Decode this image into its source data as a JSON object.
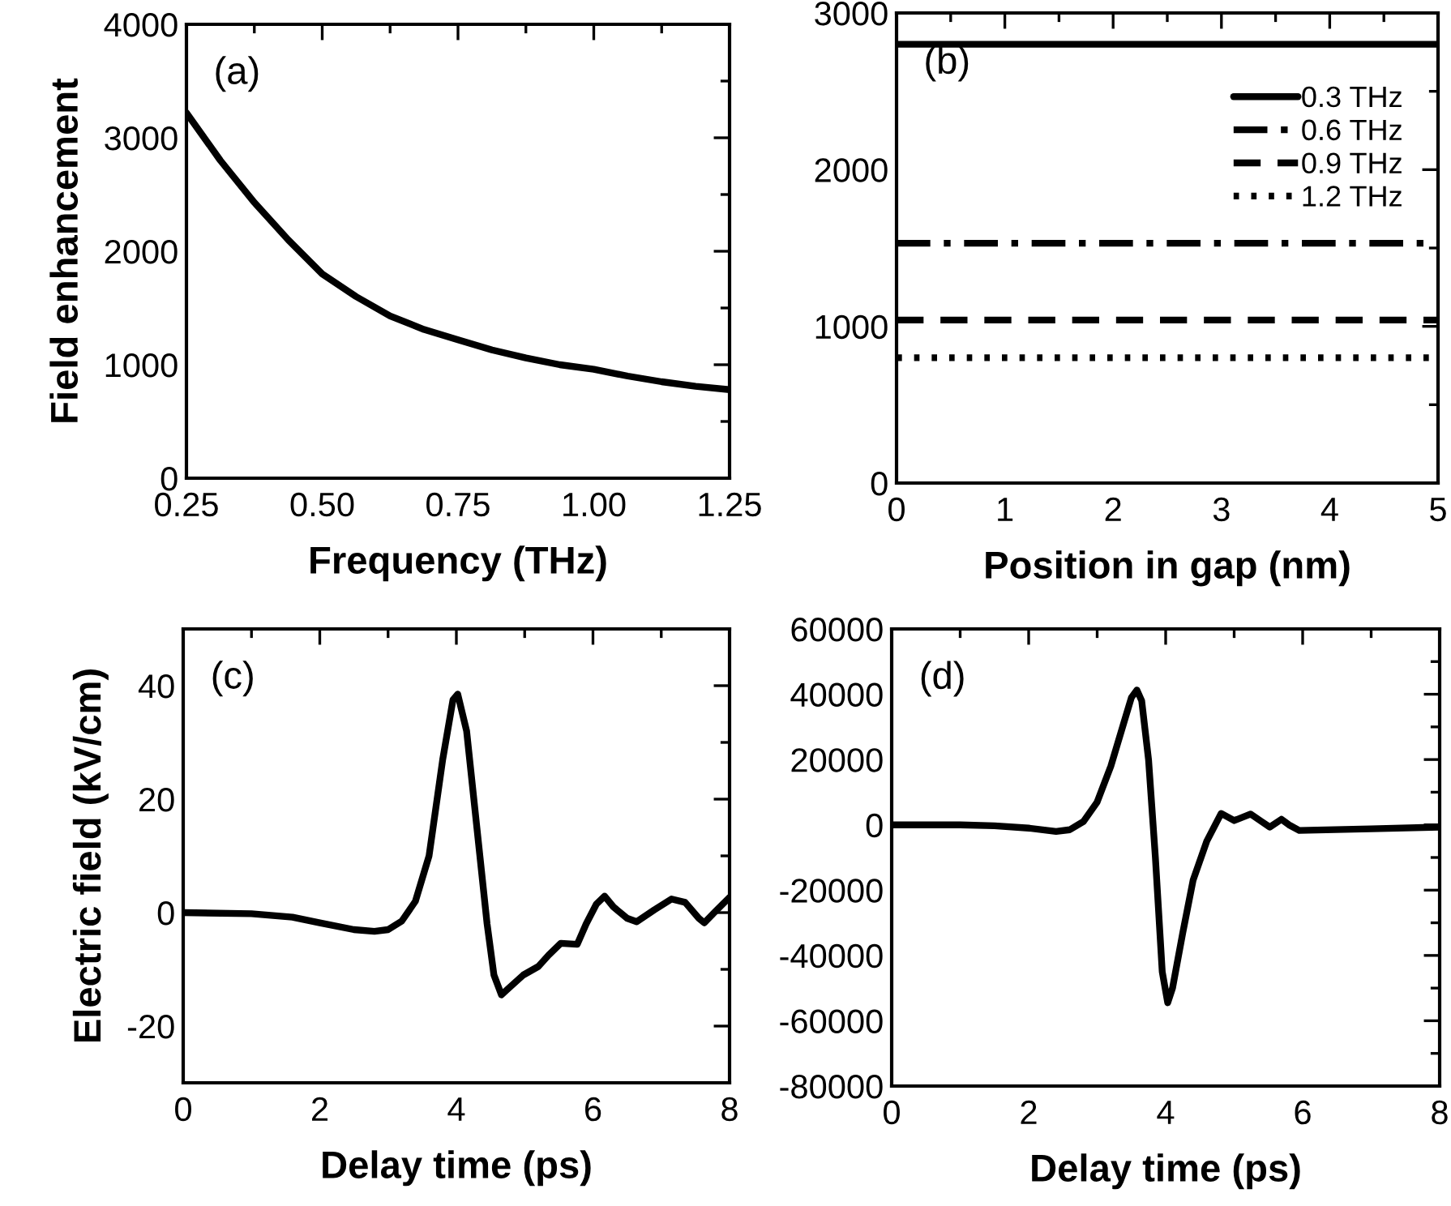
{
  "chart_data": [
    {
      "type": "line",
      "xlabel": "Frequency (THz)",
      "ylabel": "Field enhancement",
      "annotations": [
        "(a)"
      ],
      "xlim": [
        0.25,
        1.25
      ],
      "ylim": [
        0,
        4000
      ],
      "xticks": [
        {
          "value": 0.25,
          "label": "0.25"
        },
        {
          "value": 0.375,
          "label": null
        },
        {
          "value": 0.5,
          "label": "0.50"
        },
        {
          "value": 0.625,
          "label": null
        },
        {
          "value": 0.75,
          "label": "0.75"
        },
        {
          "value": 0.875,
          "label": null
        },
        {
          "value": 1.0,
          "label": "1.00"
        },
        {
          "value": 1.125,
          "label": null
        },
        {
          "value": 1.25,
          "label": "1.25"
        }
      ],
      "yticks": [
        0,
        {
          "value": 500,
          "label": null
        },
        1000,
        {
          "value": 1500,
          "label": null
        },
        2000,
        {
          "value": 2500,
          "label": null
        },
        3000,
        {
          "value": 3500,
          "label": null
        },
        4000
      ],
      "series": [
        {
          "color": "#000000",
          "line_style": "solid",
          "x": [
            0.25,
            0.3125,
            0.375,
            0.4375,
            0.5,
            0.5625,
            0.625,
            0.6875,
            0.75,
            0.8125,
            0.875,
            0.9375,
            1.0,
            1.0625,
            1.125,
            1.1875,
            1.25
          ],
          "values": [
            3220,
            2800,
            2430,
            2100,
            1800,
            1600,
            1430,
            1310,
            1220,
            1130,
            1060,
            1000,
            960,
            900,
            850,
            810,
            780
          ]
        }
      ]
    },
    {
      "type": "line",
      "xlabel": "Position in gap (nm)",
      "annotations": [
        "(b)"
      ],
      "legend": "top right",
      "xlim": [
        0,
        5
      ],
      "ylim": [
        0,
        3000
      ],
      "xticks": [
        0,
        {
          "value": 0.5,
          "label": null
        },
        1,
        {
          "value": 1.5,
          "label": null
        },
        2,
        {
          "value": 2.5,
          "label": null
        },
        3,
        {
          "value": 3.5,
          "label": null
        },
        4,
        {
          "value": 4.5,
          "label": null
        },
        5
      ],
      "yticks": [
        0,
        {
          "value": 500,
          "label": null
        },
        1000,
        {
          "value": 1500,
          "label": null
        },
        2000,
        {
          "value": 2500,
          "label": null
        },
        3000
      ],
      "series": [
        {
          "name": "0.3 THz",
          "color": "#000000",
          "line_style": "solid",
          "x": [
            0,
            5
          ],
          "values": [
            2800,
            2800
          ]
        },
        {
          "name": "0.6 THz",
          "color": "#000000",
          "line_style": "dashdot",
          "x": [
            0,
            5
          ],
          "values": [
            1530,
            1530
          ]
        },
        {
          "name": "0.9 THz",
          "color": "#000000",
          "line_style": "dashed",
          "x": [
            0,
            5
          ],
          "values": [
            1040,
            1040
          ]
        },
        {
          "name": "1.2 THz",
          "color": "#000000",
          "line_style": "dotted",
          "x": [
            0,
            5
          ],
          "values": [
            800,
            800
          ]
        }
      ]
    },
    {
      "type": "line",
      "xlabel": "Delay time (ps)",
      "ylabel": "Electric field (kV/cm)",
      "annotations": [
        "(c)"
      ],
      "xlim": [
        0,
        8
      ],
      "ylim": [
        -30,
        50
      ],
      "xticks": [
        0,
        {
          "value": 1,
          "label": null
        },
        2,
        {
          "value": 3,
          "label": null
        },
        4,
        {
          "value": 5,
          "label": null
        },
        6,
        {
          "value": 7,
          "label": null
        },
        8
      ],
      "yticks": [
        {
          "value": -30,
          "label": null
        },
        -20,
        {
          "value": -10,
          "label": null
        },
        0,
        {
          "value": 10,
          "label": null
        },
        20,
        {
          "value": 30,
          "label": null
        },
        40,
        {
          "value": 50,
          "label": null
        }
      ],
      "series": [
        {
          "color": "#000000",
          "line_style": "solid",
          "x": [
            0,
            1,
            1.6,
            2,
            2.5,
            2.8,
            3.0,
            3.2,
            3.4,
            3.6,
            3.8,
            3.95,
            4.02,
            4.15,
            4.3,
            4.45,
            4.55,
            4.66,
            4.75,
            4.98,
            5.2,
            5.35,
            5.53,
            5.77,
            5.9,
            6.05,
            6.17,
            6.3,
            6.5,
            6.64,
            6.9,
            7.15,
            7.35,
            7.55,
            7.63,
            7.8,
            8
          ],
          "values": [
            0,
            -0.2,
            -0.8,
            -1.8,
            -3,
            -3.3,
            -3,
            -1.5,
            2,
            10,
            27,
            37.5,
            38.5,
            32,
            15,
            -2,
            -11,
            -14.5,
            -13.5,
            -11,
            -9.5,
            -7.5,
            -5.4,
            -5.6,
            -2,
            1.5,
            2.9,
            1,
            -1,
            -1.6,
            0.5,
            2.4,
            1.8,
            -1,
            -1.8,
            0.3,
            2.7
          ]
        }
      ]
    },
    {
      "type": "line",
      "xlabel": "Delay time (ps)",
      "annotations": [
        "(d)"
      ],
      "xlim": [
        0,
        8
      ],
      "ylim": [
        -80000,
        60000
      ],
      "xticks": [
        0,
        {
          "value": 1,
          "label": null
        },
        2,
        {
          "value": 3,
          "label": null
        },
        4,
        {
          "value": 5,
          "label": null
        },
        6,
        {
          "value": 7,
          "label": null
        },
        8
      ],
      "yticks": [
        -80000,
        {
          "value": -70000,
          "label": null
        },
        -60000,
        {
          "value": -50000,
          "label": null
        },
        -40000,
        {
          "value": -30000,
          "label": null
        },
        -20000,
        {
          "value": -10000,
          "label": null
        },
        0,
        {
          "value": 10000,
          "label": null
        },
        20000,
        {
          "value": 30000,
          "label": null
        },
        40000,
        {
          "value": 50000,
          "label": null
        },
        60000
      ],
      "series": [
        {
          "color": "#000000",
          "line_style": "solid",
          "x": [
            0,
            1,
            1.5,
            2,
            2.4,
            2.6,
            2.8,
            3.0,
            3.2,
            3.4,
            3.5,
            3.58,
            3.65,
            3.75,
            3.85,
            3.95,
            4.03,
            4.1,
            4.25,
            4.4,
            4.6,
            4.81,
            5.0,
            5.24,
            5.4,
            5.52,
            5.69,
            5.8,
            5.95,
            7,
            8
          ],
          "values": [
            0,
            0,
            -300,
            -1000,
            -2000,
            -1500,
            1000,
            7000,
            18000,
            32000,
            39000,
            41300,
            38000,
            20000,
            -10000,
            -45000,
            -54500,
            -50000,
            -33000,
            -17000,
            -5000,
            3500,
            1300,
            3300,
            1000,
            -700,
            1700,
            0,
            -1700,
            -1200,
            -700
          ]
        }
      ]
    }
  ]
}
